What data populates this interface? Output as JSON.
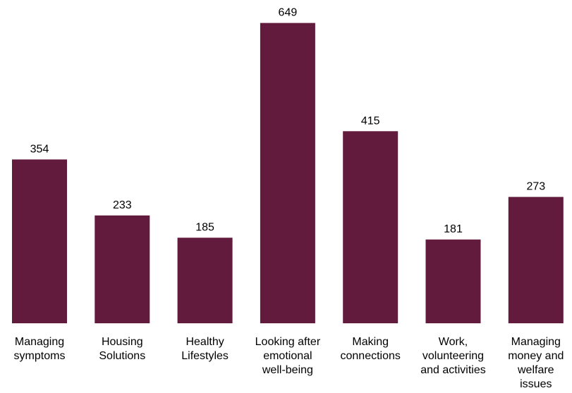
{
  "chart_data": {
    "type": "bar",
    "categories": [
      [
        "Managing",
        "symptoms"
      ],
      [
        "Housing",
        "Solutions"
      ],
      [
        "Healthy",
        "Lifestyles"
      ],
      [
        "Looking after",
        "emotional",
        "well-being"
      ],
      [
        "Making",
        "connections"
      ],
      [
        "Work,",
        "volunteering",
        "and activities"
      ],
      [
        "Managing",
        "money and",
        "welfare",
        "issues"
      ]
    ],
    "values": [
      354,
      233,
      185,
      649,
      415,
      181,
      273
    ],
    "bar_color": "#621a3d",
    "data_labels": true,
    "grid": false,
    "title": "",
    "xlabel": "",
    "ylabel": ""
  }
}
